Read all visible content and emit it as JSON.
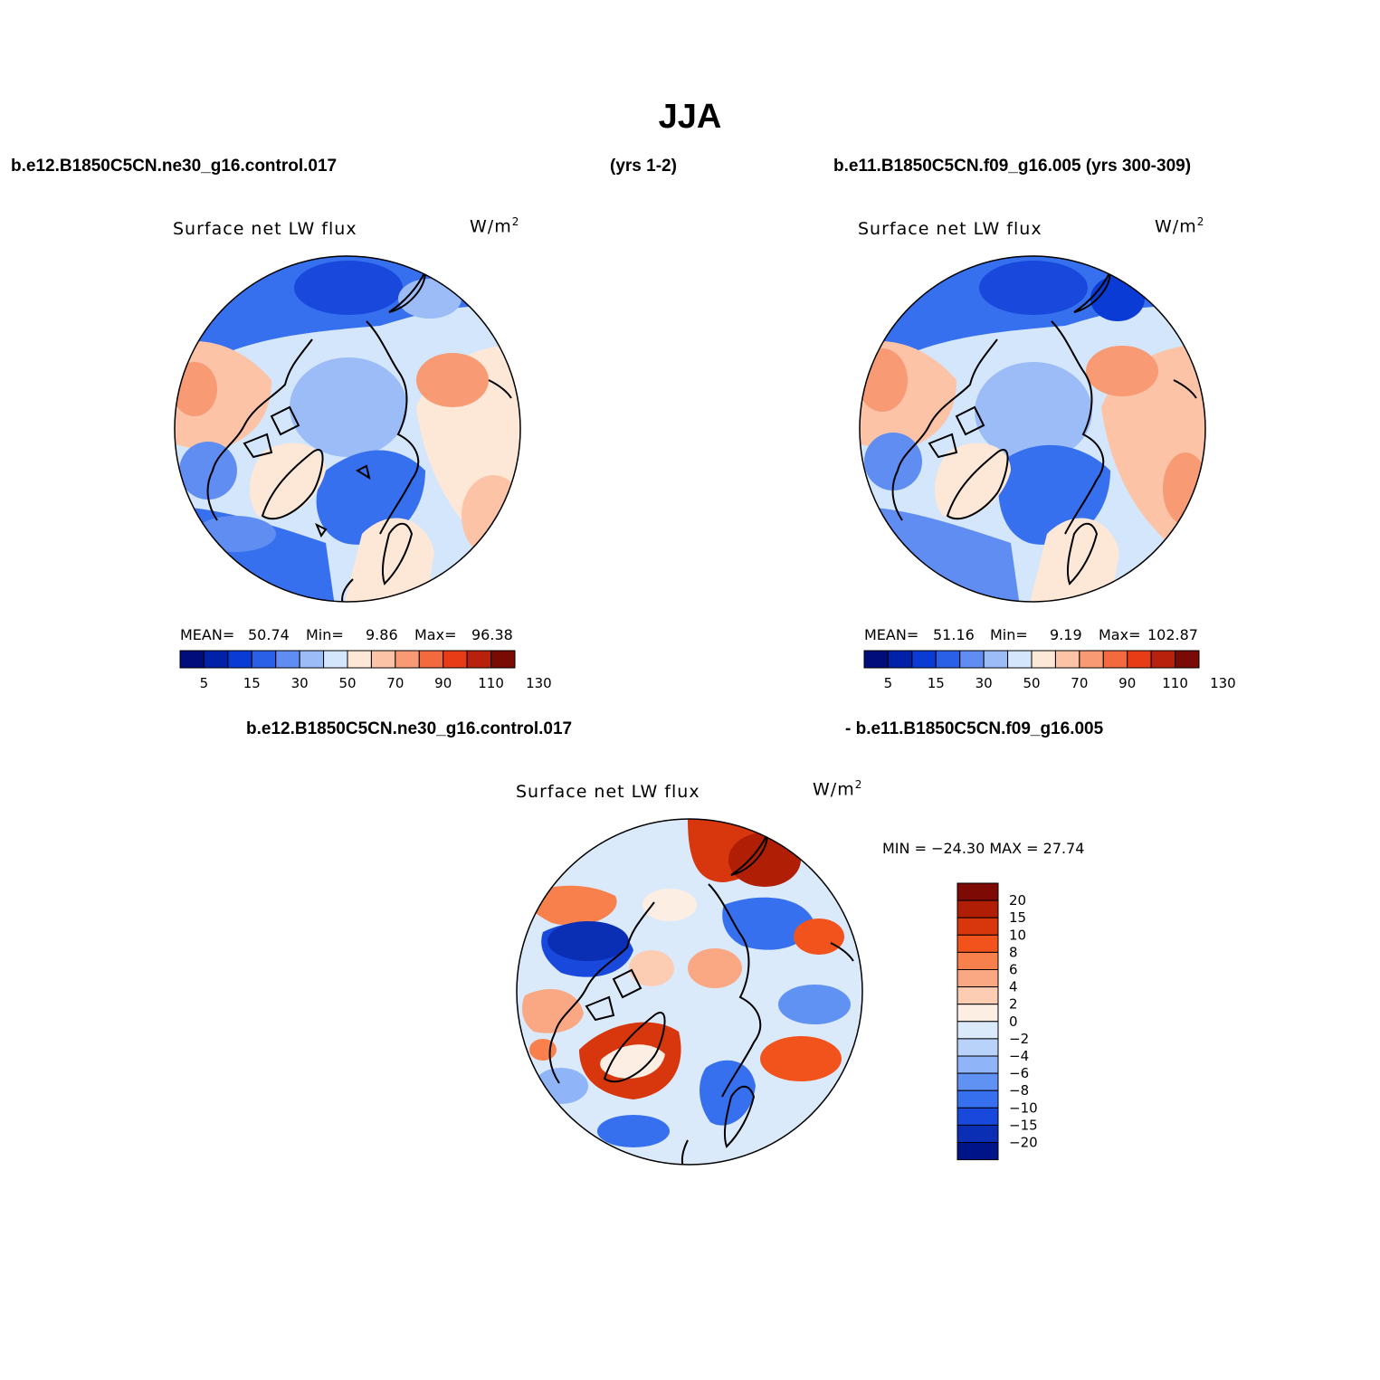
{
  "title": "JJA",
  "header": {
    "case_left": "b.e12.B1850C5CN.ne30_g16.control.017",
    "years_left": "(yrs 1-2)",
    "case_right": "b.e11.B1850C5CN.f09_g16.005 (yrs 300-309)"
  },
  "panels": [
    {
      "title": "Surface net LW flux",
      "units": "W/m",
      "units_sup": "2",
      "mean_label": "MEAN=",
      "mean_value": "50.74",
      "min_label": "Min=",
      "min_value": "9.86",
      "max_label": "Max=",
      "max_value": "96.38"
    },
    {
      "title": "Surface net LW flux",
      "units": "W/m",
      "units_sup": "2",
      "mean_label": "MEAN=",
      "mean_value": "51.16",
      "min_label": "Min=",
      "min_value": "9.19",
      "max_label": "Max=",
      "max_value": "102.87"
    }
  ],
  "abs_colorbar": {
    "colors": [
      "#000d7a",
      "#0021a8",
      "#0a3bd4",
      "#2a60e8",
      "#5f8df2",
      "#9cbcf8",
      "#d3e6fb",
      "#fde8d8",
      "#fcc3a6",
      "#f89a73",
      "#f46a3f",
      "#e83c17",
      "#b8210b",
      "#7a0a04"
    ],
    "ticks": [
      "5",
      "15",
      "30",
      "50",
      "70",
      "90",
      "110",
      "130"
    ]
  },
  "diff": {
    "case_a": "b.e12.B1850C5CN.ne30_g16.control.017",
    "case_b": "- b.e11.B1850C5CN.f09_g16.005",
    "title": "Surface net LW flux",
    "units": "W/m",
    "units_sup": "2",
    "minmax": "MIN = −24.30 MAX =   27.74",
    "colors": [
      "#7d0a04",
      "#b01e06",
      "#d8360c",
      "#f2531d",
      "#f7804c",
      "#f9a883",
      "#fccdb3",
      "#fdeee3",
      "#dbeafb",
      "#b8d2fa",
      "#8fb4f7",
      "#5f92f3",
      "#3670ee",
      "#1849dc",
      "#0a2fb5",
      "#00148a"
    ],
    "labels": [
      "20",
      "15",
      "10",
      "8",
      "6",
      "4",
      "2",
      "0",
      "−2",
      "−4",
      "−6",
      "−8",
      "−10",
      "−15",
      "−20"
    ]
  }
}
